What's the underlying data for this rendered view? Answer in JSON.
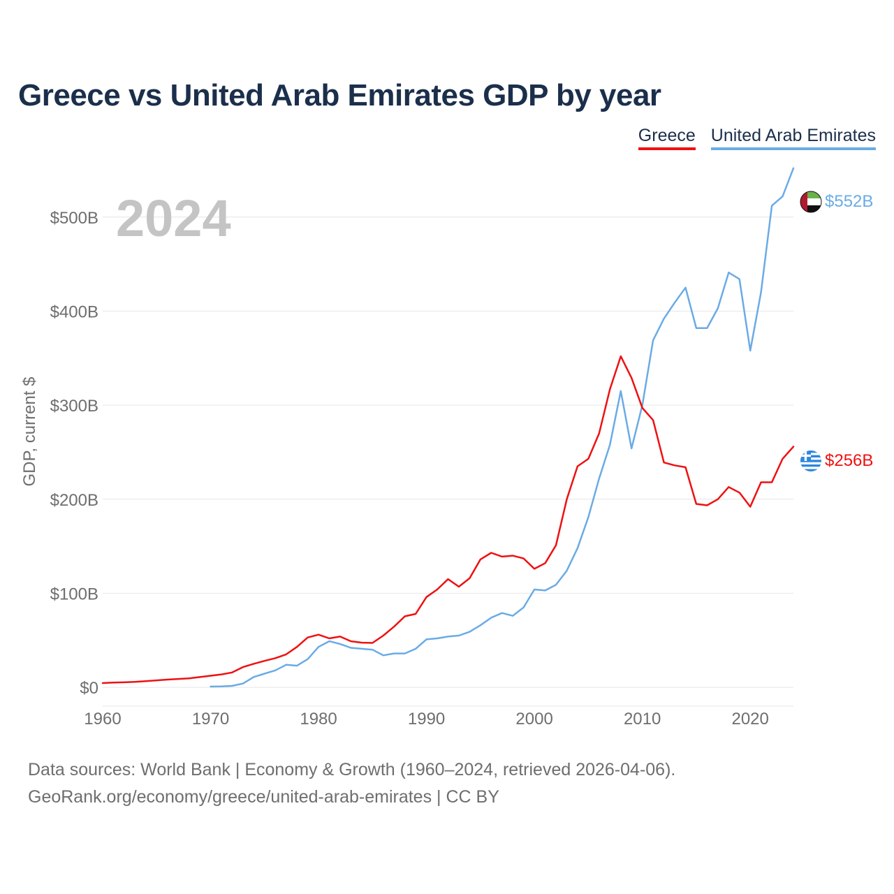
{
  "header": {
    "title": "Greece vs United Arab Emirates GDP by year"
  },
  "legend": [
    {
      "name": "Greece",
      "color": "#ee1111"
    },
    {
      "name": "United Arab Emirates",
      "color": "#6aabe6"
    }
  ],
  "colors": {
    "greece": "#ee1111",
    "uae": "#6aabe6",
    "title": "#1b2f4b",
    "axis_text": "#6e6e6e",
    "grid": "#e6e6e6",
    "year_watermark": "#c4c4c4"
  },
  "footer": {
    "line1": "Data sources: World Bank | Economy & Growth (1960–2024, retrieved 2026-04-06).",
    "line2": "GeoRank.org/economy/greece/united-arab-emirates | CC BY"
  },
  "chart_data": {
    "type": "line",
    "title": "Greece vs United Arab Emirates GDP by year",
    "year_label": "2024",
    "xlabel": "",
    "ylabel": "GDP, current $",
    "xlim": [
      1960,
      2024
    ],
    "ylim": [
      -20,
      560
    ],
    "x_ticks": [
      1960,
      1970,
      1980,
      1990,
      2000,
      2010,
      2020
    ],
    "y_ticks": [
      0,
      100,
      200,
      300,
      400,
      500
    ],
    "y_tick_labels": [
      "$0",
      "$100B",
      "$200B",
      "$300B",
      "$400B",
      "$500B"
    ],
    "grid": true,
    "series": [
      {
        "name": "Greece",
        "color": "#ee1111",
        "end_label": "$256B",
        "start_year": 1960,
        "values": [
          4.5,
          5,
          5.3,
          5.8,
          6.5,
          7.4,
          8.2,
          8.9,
          9.5,
          10.9,
          12.3,
          13.7,
          15.8,
          21.5,
          25,
          28.1,
          31,
          35,
          43,
          53,
          56,
          52,
          54,
          49,
          47.5,
          47.2,
          55,
          64.5,
          75.5,
          78,
          96,
          104,
          115,
          107,
          116,
          136,
          143,
          139,
          140,
          137,
          126,
          132,
          151,
          200,
          235,
          243,
          270,
          317,
          352,
          329,
          297,
          284,
          239,
          236,
          234,
          195,
          193.5,
          200,
          213,
          207,
          192,
          218,
          218,
          243,
          256
        ]
      },
      {
        "name": "United Arab Emirates",
        "color": "#6aabe6",
        "end_label": "$552B",
        "start_year": 1970,
        "values": [
          0.8,
          1,
          1.5,
          4,
          11,
          14.5,
          18,
          24,
          23,
          30,
          43,
          49,
          46,
          42,
          41,
          40,
          34,
          36,
          36,
          41,
          51,
          52,
          54,
          55,
          59,
          66,
          74,
          79,
          76,
          85,
          104,
          103,
          109,
          124,
          148,
          181,
          222,
          258,
          315,
          254,
          300,
          369,
          392,
          409,
          425,
          382,
          382,
          403,
          441,
          434,
          358,
          420,
          512,
          522,
          552
        ]
      }
    ]
  }
}
